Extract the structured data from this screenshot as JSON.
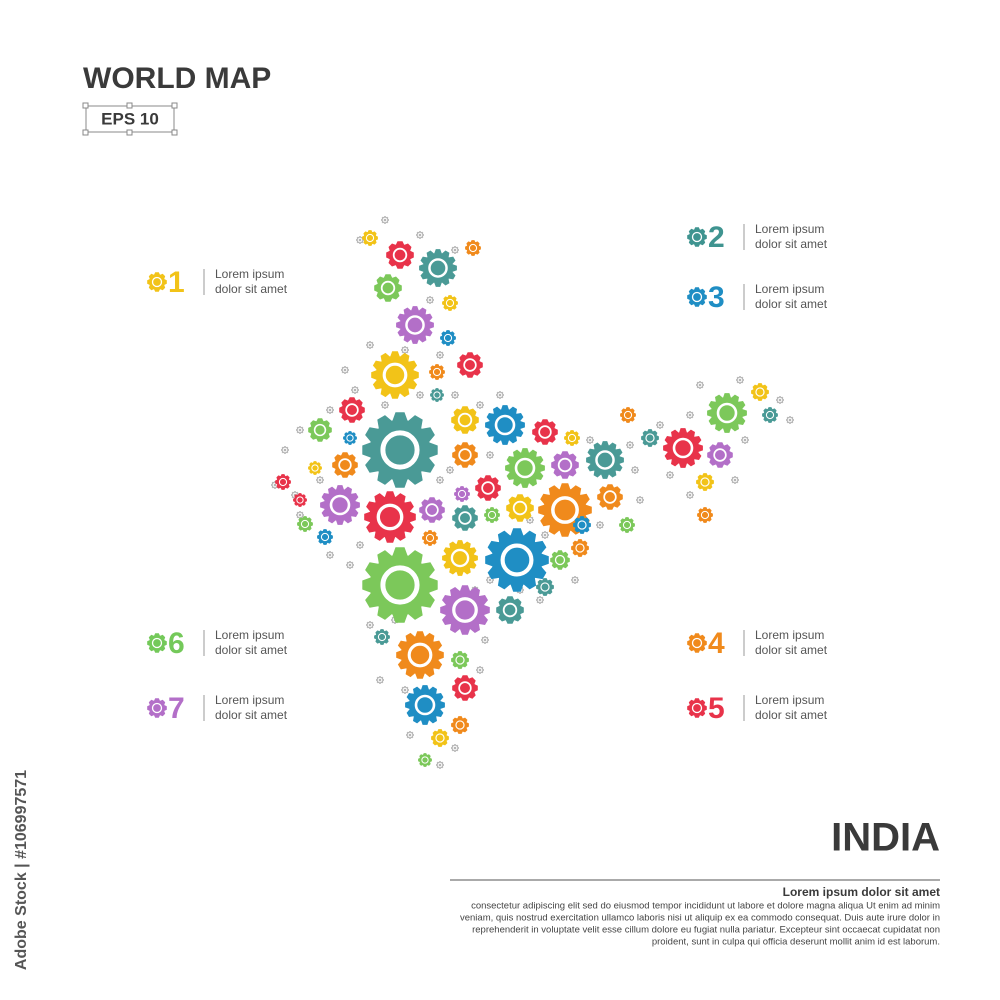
{
  "header": {
    "title": "WORLD MAP",
    "badge": "EPS 10"
  },
  "items": [
    {
      "number": "1",
      "line1": "Lorem ipsum",
      "line2": "dolor sit amet",
      "color": "#f2c318"
    },
    {
      "number": "2",
      "line1": "Lorem ipsum",
      "line2": "dolor sit amet",
      "color": "#3f9490"
    },
    {
      "number": "3",
      "line1": "Lorem ipsum",
      "line2": "dolor sit amet",
      "color": "#1f8ec4"
    },
    {
      "number": "4",
      "line1": "Lorem ipsum",
      "line2": "dolor sit amet",
      "color": "#f08a1c"
    },
    {
      "number": "5",
      "line1": "Lorem ipsum",
      "line2": "dolor sit amet",
      "color": "#e8334a"
    },
    {
      "number": "6",
      "line1": "Lorem ipsum",
      "line2": "dolor sit amet",
      "color": "#74c95a"
    },
    {
      "number": "7",
      "line1": "Lorem ipsum",
      "line2": "dolor sit amet",
      "color": "#b36fc8"
    }
  ],
  "country": "INDIA",
  "footer": {
    "heading": "Lorem ipsum dolor sit amet",
    "lines": [
      "consectetur adipiscing elit  sed do eiusmod tempor incididunt ut labore et dolore magna aliqua  Ut enim ad minim",
      "veniam, quis nostrud exercitation ullamco laboris nisi ut aliquip ex ea commodo consequat. Duis aute irure dolor in",
      "reprehenderit in voluptate velit esse cillum dolore eu fugiat nulla pariatur. Excepteur sint occaecat cupidatat non",
      "proident, sunt in culpa qui officia deserunt mollit anim id est laborum."
    ]
  },
  "stock_id": "Adobe Stock | #106997571"
}
